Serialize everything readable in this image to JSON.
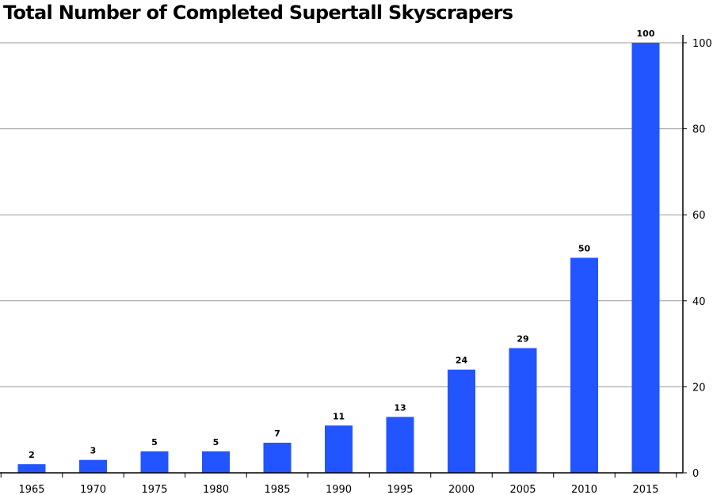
{
  "chart_data": {
    "type": "bar",
    "title": "Total Number of Completed Supertall Skyscrapers",
    "categories": [
      "1965",
      "1970",
      "1975",
      "1980",
      "1985",
      "1990",
      "1995",
      "2000",
      "2005",
      "2010",
      "2015"
    ],
    "values": [
      2,
      3,
      5,
      5,
      7,
      11,
      13,
      24,
      29,
      50,
      100
    ],
    "data_labels": [
      "2",
      "3",
      "5",
      "5",
      "7",
      "11",
      "13",
      "24",
      "29",
      "50",
      "100"
    ],
    "ylim": [
      0,
      100
    ],
    "yticks": [
      "0",
      "20",
      "40",
      "60",
      "80",
      "100"
    ],
    "y_axis_side": "right",
    "grid": true,
    "bar_color": "#2255ff",
    "grid_color": "#9a9a9a"
  }
}
